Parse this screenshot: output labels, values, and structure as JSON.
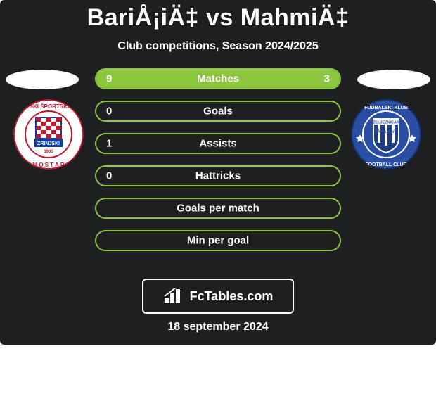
{
  "colors": {
    "card_bg": "#1e1f21",
    "text": "#ffffff",
    "title_color": "#ffffff",
    "oval_bg": "#ffffff",
    "row_border": "#8cc63f",
    "fill_bar": "#8cc63f",
    "brand_border": "#ffffff"
  },
  "title": "BariÅ¡iÄ‡ vs MahmiÄ‡",
  "subtitle": "Club competitions, Season 2024/2025",
  "rows": [
    {
      "label": "Matches",
      "left": "9",
      "right": "3",
      "left_pct": 75,
      "right_pct": 25,
      "left_fill": true,
      "right_fill": true
    },
    {
      "label": "Goals",
      "left": "0",
      "right": "",
      "left_pct": 0,
      "right_pct": 0,
      "left_fill": false,
      "right_fill": false
    },
    {
      "label": "Assists",
      "left": "1",
      "right": "",
      "left_pct": 0,
      "right_pct": 0,
      "left_fill": false,
      "right_fill": false
    },
    {
      "label": "Hattricks",
      "left": "0",
      "right": "",
      "left_pct": 0,
      "right_pct": 0,
      "left_fill": false,
      "right_fill": false
    },
    {
      "label": "Goals per match",
      "left": "",
      "right": "",
      "left_pct": 0,
      "right_pct": 0,
      "left_fill": false,
      "right_fill": false
    },
    {
      "label": "Min per goal",
      "left": "",
      "right": "",
      "left_pct": 0,
      "right_pct": 0,
      "left_fill": false,
      "right_fill": false
    }
  ],
  "brand": "FcTables.com",
  "date": "18 september 2024",
  "club_left": {
    "ring_text_color": "#c0192d",
    "inner_bg": "#ffffff",
    "accent": "#0a3fa1",
    "check": "#c0192d"
  },
  "club_right": {
    "outer": "#2a4ea3",
    "inner": "#2a4ea3",
    "accent": "#ffffff"
  }
}
